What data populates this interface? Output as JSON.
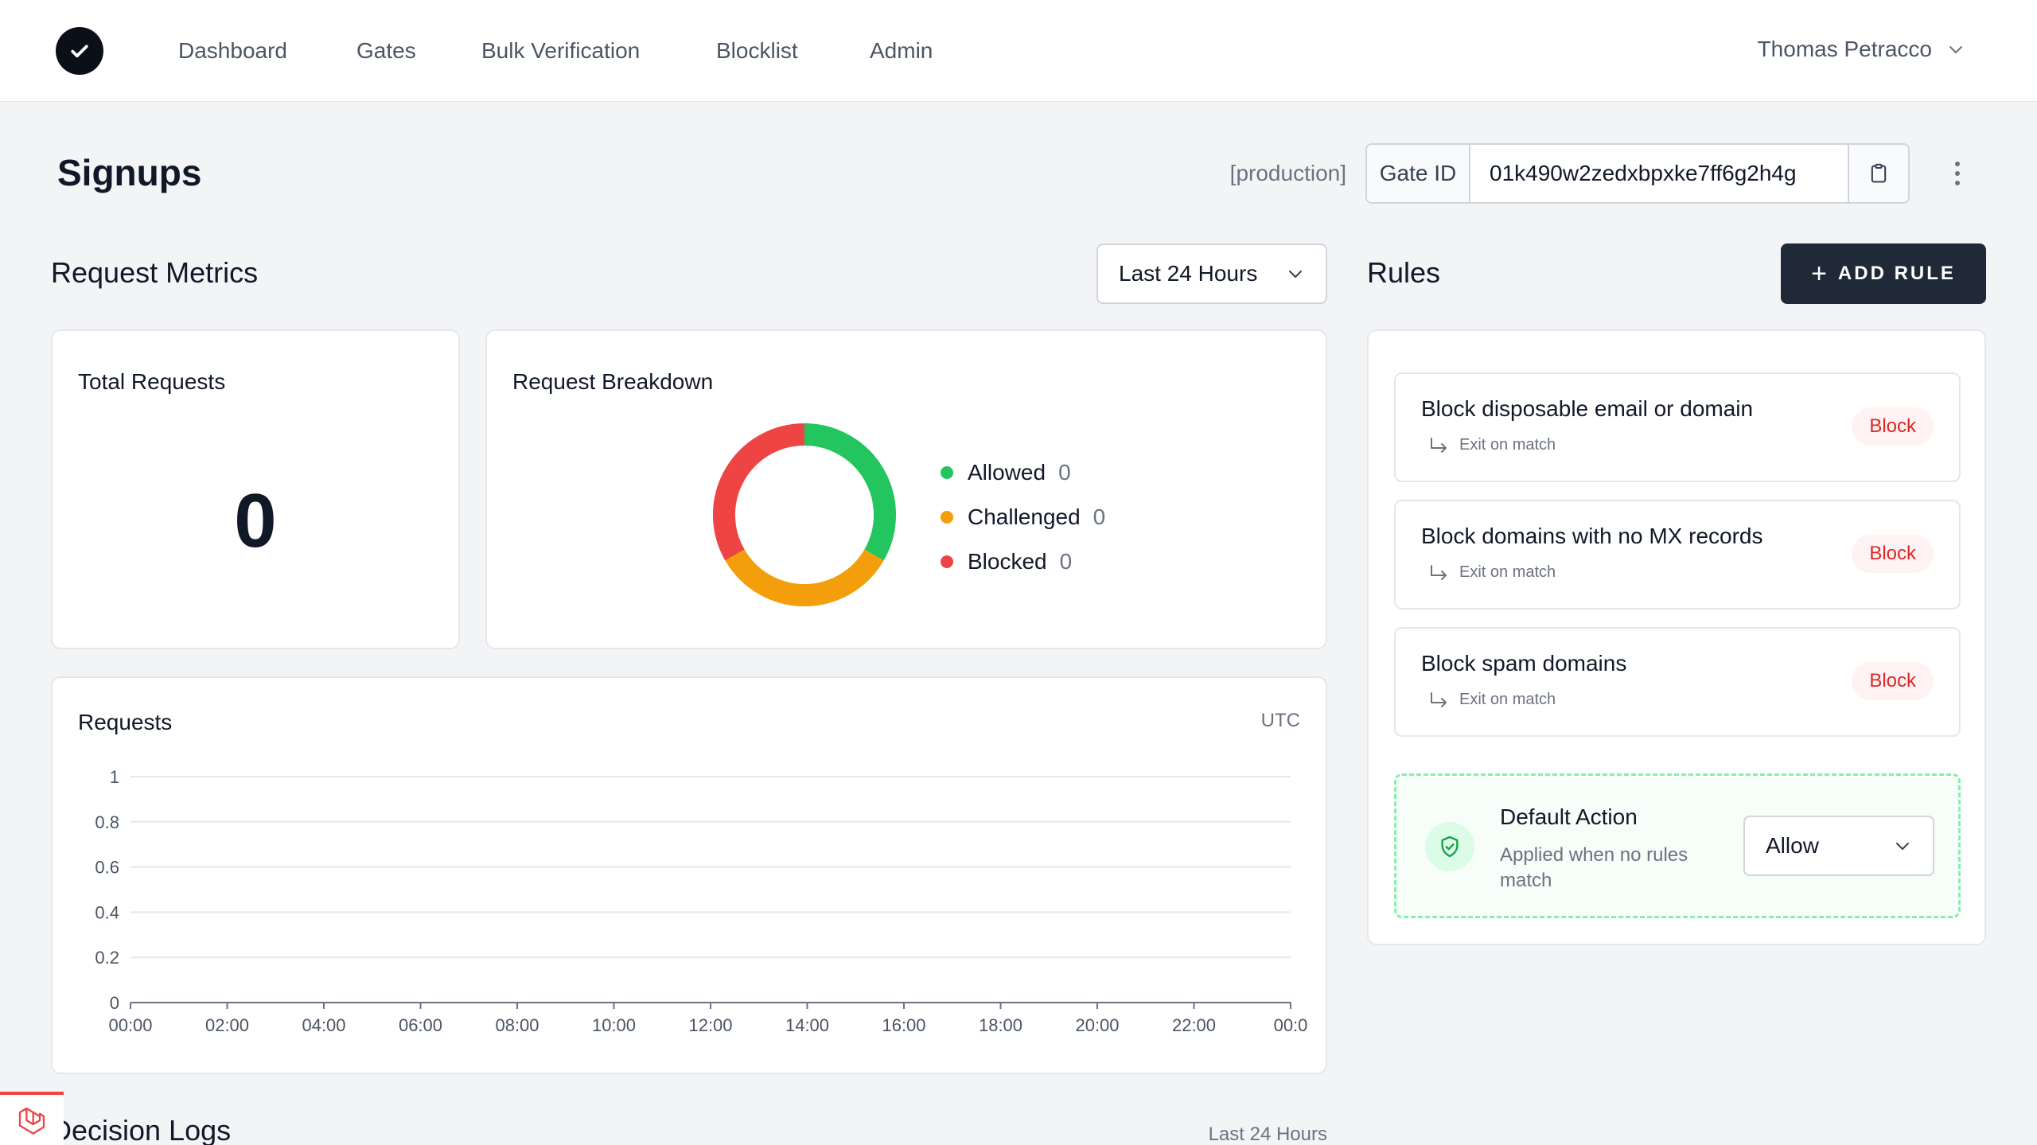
{
  "nav": {
    "links": [
      "Dashboard",
      "Gates",
      "Bulk Verification",
      "Blocklist",
      "Admin"
    ],
    "user": "Thomas Petracco"
  },
  "page": {
    "title": "Signups",
    "environment": "[production]",
    "gate_id_label": "Gate ID",
    "gate_id": "01k490w2zedxbpxke7ff6g2h4g"
  },
  "metrics": {
    "title": "Request Metrics",
    "range": "Last 24 Hours",
    "total_requests_title": "Total Requests",
    "total_requests": "0",
    "breakdown_title": "Request Breakdown",
    "breakdown": [
      {
        "name": "Allowed",
        "value": "0",
        "color": "#22c55e"
      },
      {
        "name": "Challenged",
        "value": "0",
        "color": "#f59e0b"
      },
      {
        "name": "Blocked",
        "value": "0",
        "color": "#ef4444"
      }
    ]
  },
  "chart_data": {
    "type": "line",
    "title": "Requests",
    "timezone": "UTC",
    "x": [
      "00:00",
      "02:00",
      "04:00",
      "06:00",
      "08:00",
      "10:00",
      "12:00",
      "14:00",
      "16:00",
      "18:00",
      "20:00",
      "22:00",
      "00:0"
    ],
    "y_ticks": [
      "1",
      "0.8",
      "0.6",
      "0.4",
      "0.2",
      "0"
    ],
    "ylim": [
      0,
      1
    ],
    "series": [
      {
        "values": [
          0,
          0,
          0,
          0,
          0,
          0,
          0,
          0,
          0,
          0,
          0,
          0,
          0
        ]
      }
    ],
    "grid": true
  },
  "rules": {
    "title": "Rules",
    "add_label": "ADD RULE",
    "items": [
      {
        "name": "Block disposable email or domain",
        "sub": "Exit on match",
        "badge": "Block"
      },
      {
        "name": "Block domains with no MX records",
        "sub": "Exit on match",
        "badge": "Block"
      },
      {
        "name": "Block spam domains",
        "sub": "Exit on match",
        "badge": "Block"
      }
    ],
    "default_title": "Default Action",
    "default_desc": "Applied when no rules match",
    "default_value": "Allow"
  },
  "decision": {
    "title": "Decision Logs",
    "range": "Last 24 Hours"
  },
  "icons": {
    "logo": "check-circle-icon",
    "copy": "clipboard-icon",
    "shield": "shield-check-icon",
    "laravel": "laravel-icon"
  }
}
